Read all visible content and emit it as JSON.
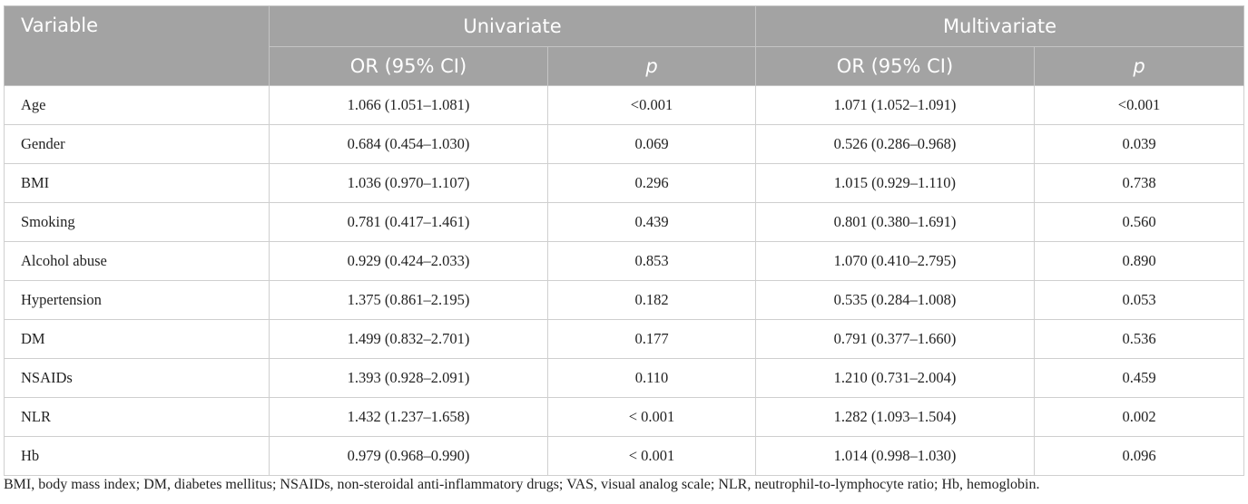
{
  "header": {
    "variable": "Variable",
    "univariate": "Univariate",
    "multivariate": "Multivariate",
    "or_ci": "OR (95% CI)",
    "p": "p"
  },
  "rows": [
    {
      "variable": "Age",
      "uni_or": "1.066 (1.051–1.081)",
      "uni_p": "<0.001",
      "multi_or": "1.071 (1.052–1.091)",
      "multi_p": "<0.001"
    },
    {
      "variable": "Gender",
      "uni_or": "0.684 (0.454–1.030)",
      "uni_p": "0.069",
      "multi_or": "0.526 (0.286–0.968)",
      "multi_p": "0.039"
    },
    {
      "variable": "BMI",
      "uni_or": "1.036 (0.970–1.107)",
      "uni_p": "0.296",
      "multi_or": "1.015 (0.929–1.110)",
      "multi_p": "0.738"
    },
    {
      "variable": "Smoking",
      "uni_or": "0.781 (0.417–1.461)",
      "uni_p": "0.439",
      "multi_or": "0.801 (0.380–1.691)",
      "multi_p": "0.560"
    },
    {
      "variable": "Alcohol abuse",
      "uni_or": "0.929 (0.424–2.033)",
      "uni_p": "0.853",
      "multi_or": "1.070 (0.410–2.795)",
      "multi_p": "0.890"
    },
    {
      "variable": "Hypertension",
      "uni_or": "1.375 (0.861–2.195)",
      "uni_p": "0.182",
      "multi_or": "0.535 (0.284–1.008)",
      "multi_p": "0.053"
    },
    {
      "variable": "DM",
      "uni_or": "1.499 (0.832–2.701)",
      "uni_p": "0.177",
      "multi_or": "0.791 (0.377–1.660)",
      "multi_p": "0.536"
    },
    {
      "variable": "NSAIDs",
      "uni_or": "1.393 (0.928–2.091)",
      "uni_p": "0.110",
      "multi_or": "1.210 (0.731–2.004)",
      "multi_p": "0.459"
    },
    {
      "variable": "NLR",
      "uni_or": "1.432 (1.237–1.658)",
      "uni_p": "< 0.001",
      "multi_or": "1.282 (1.093–1.504)",
      "multi_p": "0.002"
    },
    {
      "variable": "Hb",
      "uni_or": "0.979 (0.968–0.990)",
      "uni_p": "< 0.001",
      "multi_or": "1.014 (0.998–1.030)",
      "multi_p": "0.096"
    }
  ],
  "footnote": "BMI, body mass index; DM, diabetes mellitus; NSAIDs, non-steroidal anti-inflammatory drugs; VAS, visual analog scale; NLR, neutrophil-to-lymphocyte ratio; Hb, hemoglobin.",
  "colors": {
    "header_bg": "#a3a3a3",
    "header_text": "#ffffff",
    "border": "#cfcfcf"
  }
}
